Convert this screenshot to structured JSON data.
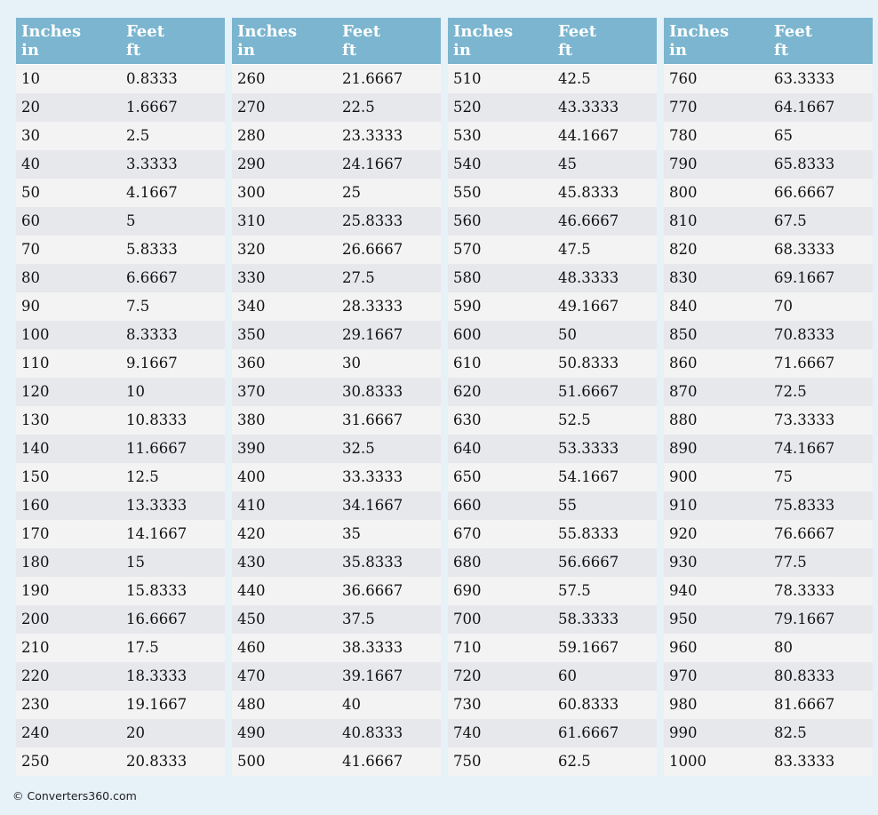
{
  "header": {
    "inches_label": "Inches",
    "inches_unit": "in",
    "feet_label": "Feet",
    "feet_unit": "ft"
  },
  "tables": [
    {
      "rows": [
        [
          "10",
          "0.8333"
        ],
        [
          "20",
          "1.6667"
        ],
        [
          "30",
          "2.5"
        ],
        [
          "40",
          "3.3333"
        ],
        [
          "50",
          "4.1667"
        ],
        [
          "60",
          "5"
        ],
        [
          "70",
          "5.8333"
        ],
        [
          "80",
          "6.6667"
        ],
        [
          "90",
          "7.5"
        ],
        [
          "100",
          "8.3333"
        ],
        [
          "110",
          "9.1667"
        ],
        [
          "120",
          "10"
        ],
        [
          "130",
          "10.8333"
        ],
        [
          "140",
          "11.6667"
        ],
        [
          "150",
          "12.5"
        ],
        [
          "160",
          "13.3333"
        ],
        [
          "170",
          "14.1667"
        ],
        [
          "180",
          "15"
        ],
        [
          "190",
          "15.8333"
        ],
        [
          "200",
          "16.6667"
        ],
        [
          "210",
          "17.5"
        ],
        [
          "220",
          "18.3333"
        ],
        [
          "230",
          "19.1667"
        ],
        [
          "240",
          "20"
        ],
        [
          "250",
          "20.8333"
        ]
      ]
    },
    {
      "rows": [
        [
          "260",
          "21.6667"
        ],
        [
          "270",
          "22.5"
        ],
        [
          "280",
          "23.3333"
        ],
        [
          "290",
          "24.1667"
        ],
        [
          "300",
          "25"
        ],
        [
          "310",
          "25.8333"
        ],
        [
          "320",
          "26.6667"
        ],
        [
          "330",
          "27.5"
        ],
        [
          "340",
          "28.3333"
        ],
        [
          "350",
          "29.1667"
        ],
        [
          "360",
          "30"
        ],
        [
          "370",
          "30.8333"
        ],
        [
          "380",
          "31.6667"
        ],
        [
          "390",
          "32.5"
        ],
        [
          "400",
          "33.3333"
        ],
        [
          "410",
          "34.1667"
        ],
        [
          "420",
          "35"
        ],
        [
          "430",
          "35.8333"
        ],
        [
          "440",
          "36.6667"
        ],
        [
          "450",
          "37.5"
        ],
        [
          "460",
          "38.3333"
        ],
        [
          "470",
          "39.1667"
        ],
        [
          "480",
          "40"
        ],
        [
          "490",
          "40.8333"
        ],
        [
          "500",
          "41.6667"
        ]
      ]
    },
    {
      "rows": [
        [
          "510",
          "42.5"
        ],
        [
          "520",
          "43.3333"
        ],
        [
          "530",
          "44.1667"
        ],
        [
          "540",
          "45"
        ],
        [
          "550",
          "45.8333"
        ],
        [
          "560",
          "46.6667"
        ],
        [
          "570",
          "47.5"
        ],
        [
          "580",
          "48.3333"
        ],
        [
          "590",
          "49.1667"
        ],
        [
          "600",
          "50"
        ],
        [
          "610",
          "50.8333"
        ],
        [
          "620",
          "51.6667"
        ],
        [
          "630",
          "52.5"
        ],
        [
          "640",
          "53.3333"
        ],
        [
          "650",
          "54.1667"
        ],
        [
          "660",
          "55"
        ],
        [
          "670",
          "55.8333"
        ],
        [
          "680",
          "56.6667"
        ],
        [
          "690",
          "57.5"
        ],
        [
          "700",
          "58.3333"
        ],
        [
          "710",
          "59.1667"
        ],
        [
          "720",
          "60"
        ],
        [
          "730",
          "60.8333"
        ],
        [
          "740",
          "61.6667"
        ],
        [
          "750",
          "62.5"
        ]
      ]
    },
    {
      "rows": [
        [
          "760",
          "63.3333"
        ],
        [
          "770",
          "64.1667"
        ],
        [
          "780",
          "65"
        ],
        [
          "790",
          "65.8333"
        ],
        [
          "800",
          "66.6667"
        ],
        [
          "810",
          "67.5"
        ],
        [
          "820",
          "68.3333"
        ],
        [
          "830",
          "69.1667"
        ],
        [
          "840",
          "70"
        ],
        [
          "850",
          "70.8333"
        ],
        [
          "860",
          "71.6667"
        ],
        [
          "870",
          "72.5"
        ],
        [
          "880",
          "73.3333"
        ],
        [
          "890",
          "74.1667"
        ],
        [
          "900",
          "75"
        ],
        [
          "910",
          "75.8333"
        ],
        [
          "920",
          "76.6667"
        ],
        [
          "930",
          "77.5"
        ],
        [
          "940",
          "78.3333"
        ],
        [
          "950",
          "79.1667"
        ],
        [
          "960",
          "80"
        ],
        [
          "970",
          "80.8333"
        ],
        [
          "980",
          "81.6667"
        ],
        [
          "990",
          "82.5"
        ],
        [
          "1000",
          "83.3333"
        ]
      ]
    }
  ],
  "footer": {
    "text": "© Converters360.com"
  },
  "colors": {
    "header_bg": "#7bb5cf",
    "row_odd": "#f3f3f4",
    "row_even": "#e7e8ec",
    "page_bg": "#e6f1f8"
  }
}
